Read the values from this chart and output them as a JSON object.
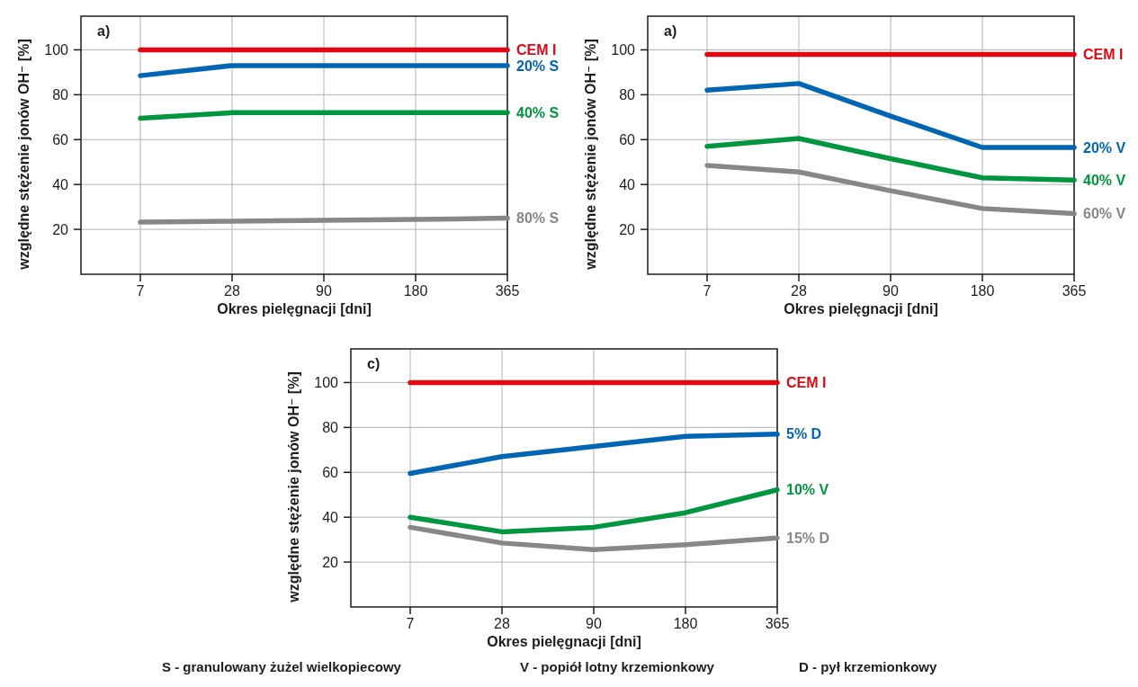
{
  "chart_data": [
    {
      "type": "line",
      "xlabel": "Okres pielęgnacji  [dni]",
      "ylabel": "względne stężenie jonów OH⁻ [%]",
      "annotations": [
        "a)"
      ],
      "categories": [
        "7",
        "28",
        "90",
        "180",
        "365"
      ],
      "ylim": [
        0,
        115
      ],
      "yticks": [
        20,
        40,
        60,
        80,
        100
      ],
      "grid": true,
      "series": [
        {
          "name": "CEM I",
          "color": "#e30613",
          "values": [
            100,
            100,
            100,
            100,
            100
          ]
        },
        {
          "name": "20% S",
          "color": "#0066b3",
          "values": [
            88.5,
            93,
            93,
            93,
            93
          ]
        },
        {
          "name": "40% S",
          "color": "#009640",
          "values": [
            69.5,
            72,
            72,
            72,
            72
          ]
        },
        {
          "name": "80% S",
          "color": "#878787",
          "values": [
            23.2,
            23.6,
            24,
            24.4,
            25
          ]
        }
      ]
    },
    {
      "type": "line",
      "xlabel": "Okres pielęgnacji  [dni]",
      "ylabel": "względne stężenie jonów OH⁻ [%]",
      "annotations": [
        "a)"
      ],
      "categories": [
        "7",
        "28",
        "90",
        "180",
        "365"
      ],
      "ylim": [
        0,
        115
      ],
      "yticks": [
        20,
        40,
        60,
        80,
        100
      ],
      "grid": true,
      "series": [
        {
          "name": "CEM I",
          "color": "#e30613",
          "values": [
            98,
            98,
            98,
            98,
            98
          ]
        },
        {
          "name": "20% V",
          "color": "#0066b3",
          "values": [
            82,
            85,
            70.5,
            56.5,
            56.5
          ]
        },
        {
          "name": "40% V",
          "color": "#009640",
          "values": [
            57,
            60.5,
            51.5,
            43,
            42
          ]
        },
        {
          "name": "60% V",
          "color": "#878787",
          "values": [
            48.5,
            45.6,
            37.2,
            29.3,
            27
          ]
        }
      ]
    },
    {
      "type": "line",
      "xlabel": "Okres pielęgnacji  [dni]",
      "ylabel": "względne stężenie jonów OH⁻ [%]",
      "annotations": [
        "c)",
        "S - granulowany żużel wielkopiecowy",
        "V - popiół lotny krzemionkowy",
        "D - pył krzemionkowy"
      ],
      "categories": [
        "7",
        "28",
        "90",
        "180",
        "365"
      ],
      "ylim": [
        0,
        115
      ],
      "yticks": [
        20,
        40,
        60,
        80,
        100
      ],
      "grid": true,
      "series": [
        {
          "name": "CEM I",
          "color": "#e30613",
          "values": [
            100,
            100,
            100,
            100,
            100
          ]
        },
        {
          "name": "5% D",
          "color": "#0066b3",
          "values": [
            59.5,
            67,
            71.5,
            76,
            77
          ]
        },
        {
          "name": "10% V",
          "color": "#009640",
          "values": [
            40,
            33.5,
            35.5,
            42,
            52.2
          ]
        },
        {
          "name": "15% D",
          "color": "#878787",
          "values": [
            35.5,
            28.5,
            25.5,
            27.7,
            30.8
          ]
        }
      ]
    }
  ]
}
